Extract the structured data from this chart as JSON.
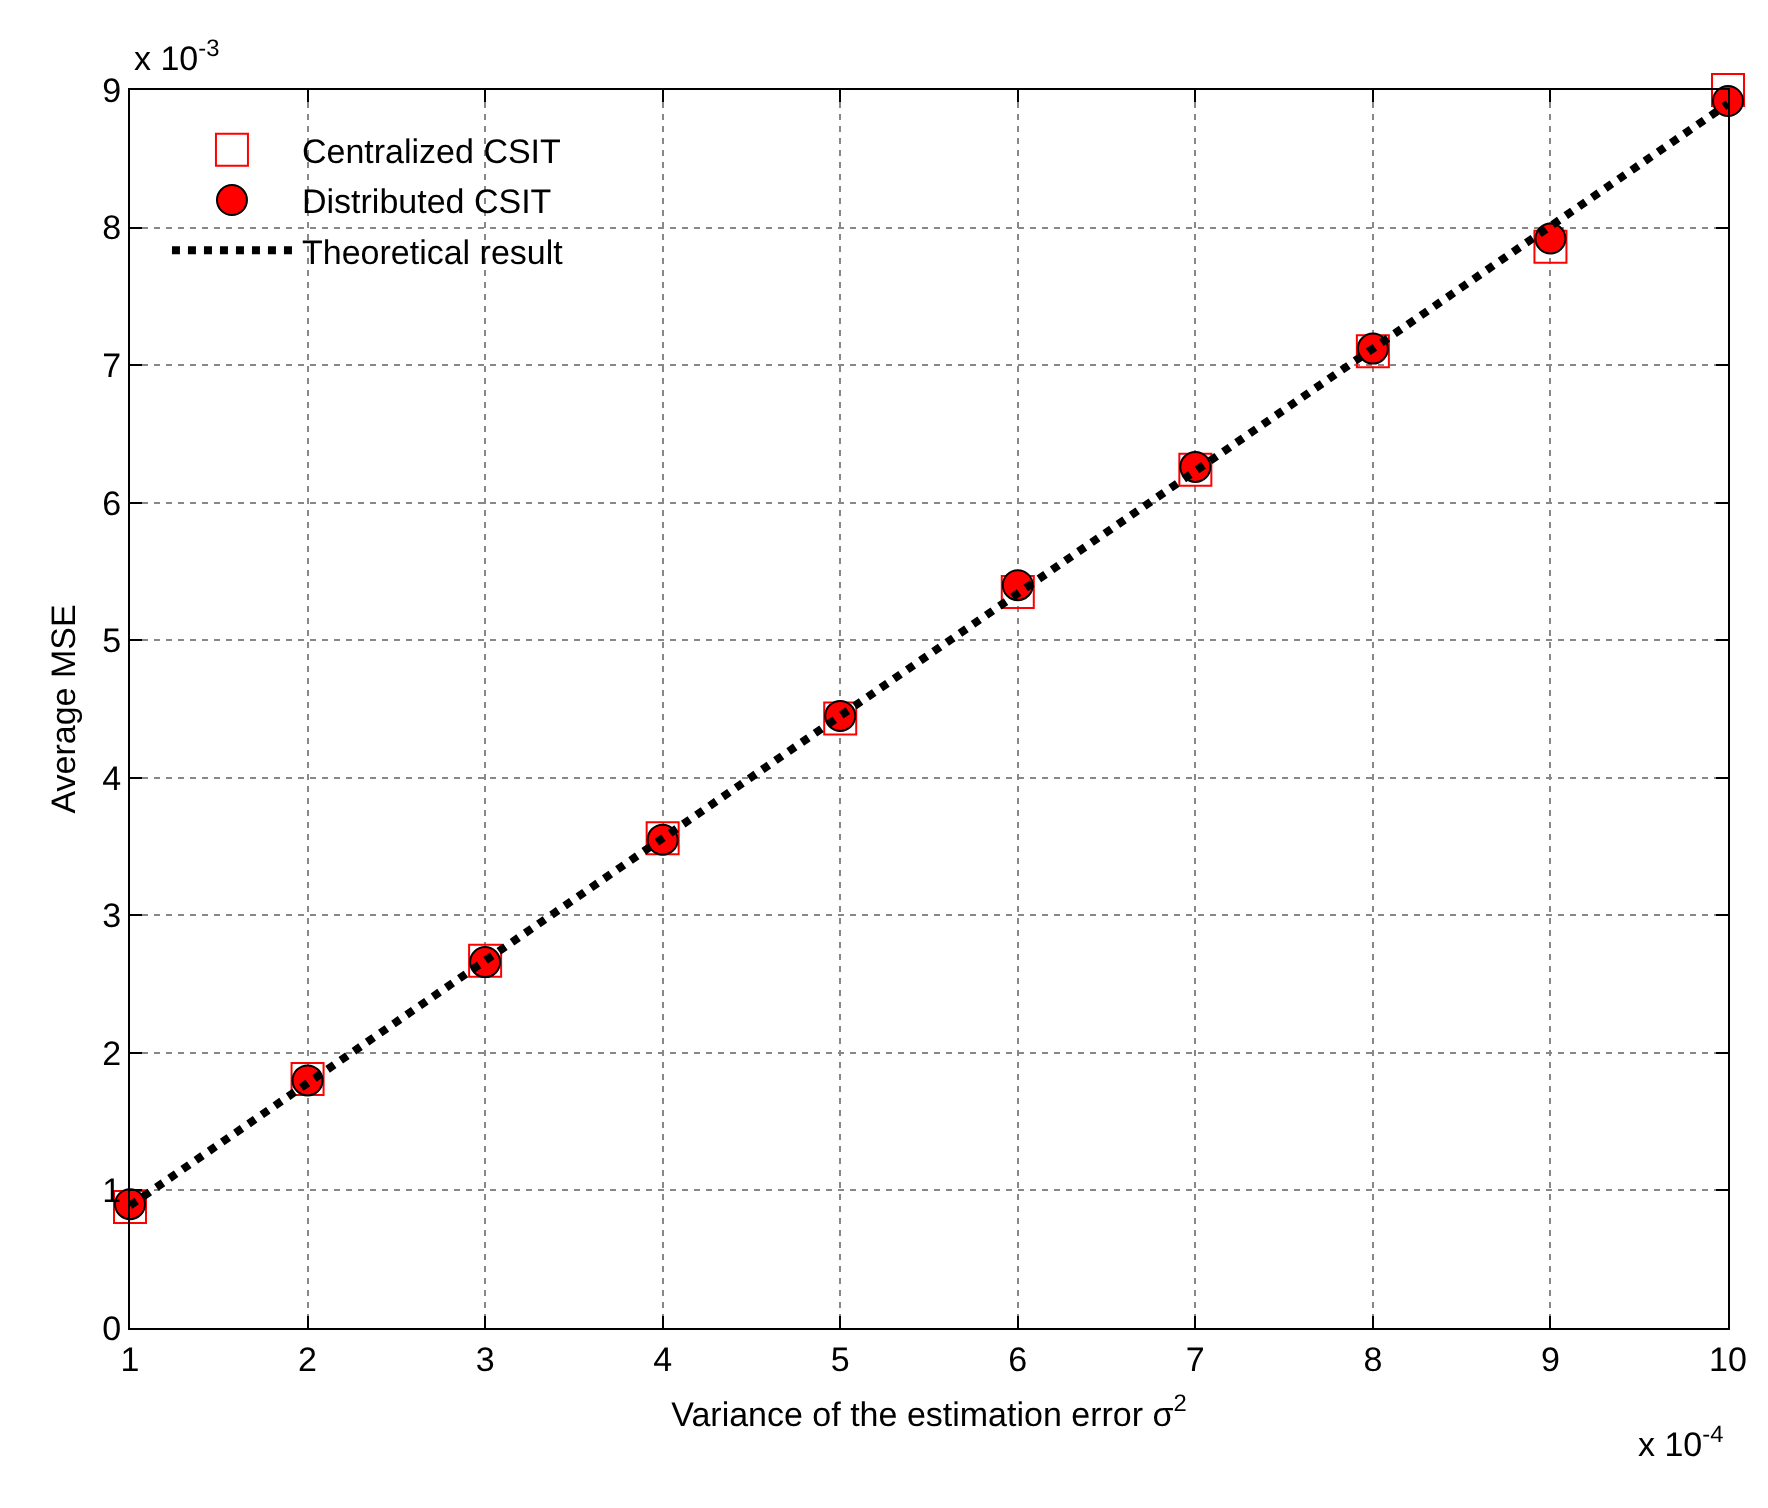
{
  "chart_data": {
    "type": "scatter",
    "xlabel": "Variance of the estimation error σ$^{2}$",
    "ylabel": "Average MSE",
    "annotations": [
      "x 10$^{-3}$",
      "x 10$^{-4}$"
    ],
    "x": [
      1,
      2,
      3,
      4,
      5,
      6,
      7,
      8,
      9,
      10
    ],
    "series": [
      {
        "name": "Centralized CSIT",
        "color": "#ff0000",
        "marker": "square",
        "values": [
          0.88,
          1.81,
          2.67,
          3.56,
          4.43,
          5.35,
          6.24,
          7.1,
          7.86,
          9.0
        ]
      },
      {
        "name": "Distributed CSIT",
        "color": "#ff0000",
        "marker": "circle",
        "values": [
          0.9,
          1.8,
          2.66,
          3.55,
          4.45,
          5.4,
          6.26,
          7.12,
          7.92,
          8.92
        ]
      },
      {
        "name": "Theoretical result",
        "type": "line",
        "color": "#000000",
        "marker": "none",
        "line_style": "dotted",
        "values": [
          0.89,
          1.78,
          2.67,
          3.56,
          4.45,
          5.34,
          6.23,
          7.12,
          8.01,
          8.9
        ]
      }
    ],
    "xlim": [
      1,
      10
    ],
    "ylim": [
      0,
      9
    ],
    "xticks": [
      1,
      2,
      3,
      4,
      5,
      6,
      7,
      8,
      9,
      10
    ],
    "yticks": [
      0,
      1,
      2,
      3,
      4,
      5,
      6,
      7,
      8,
      9
    ],
    "grid": true,
    "legend": "top left"
  }
}
